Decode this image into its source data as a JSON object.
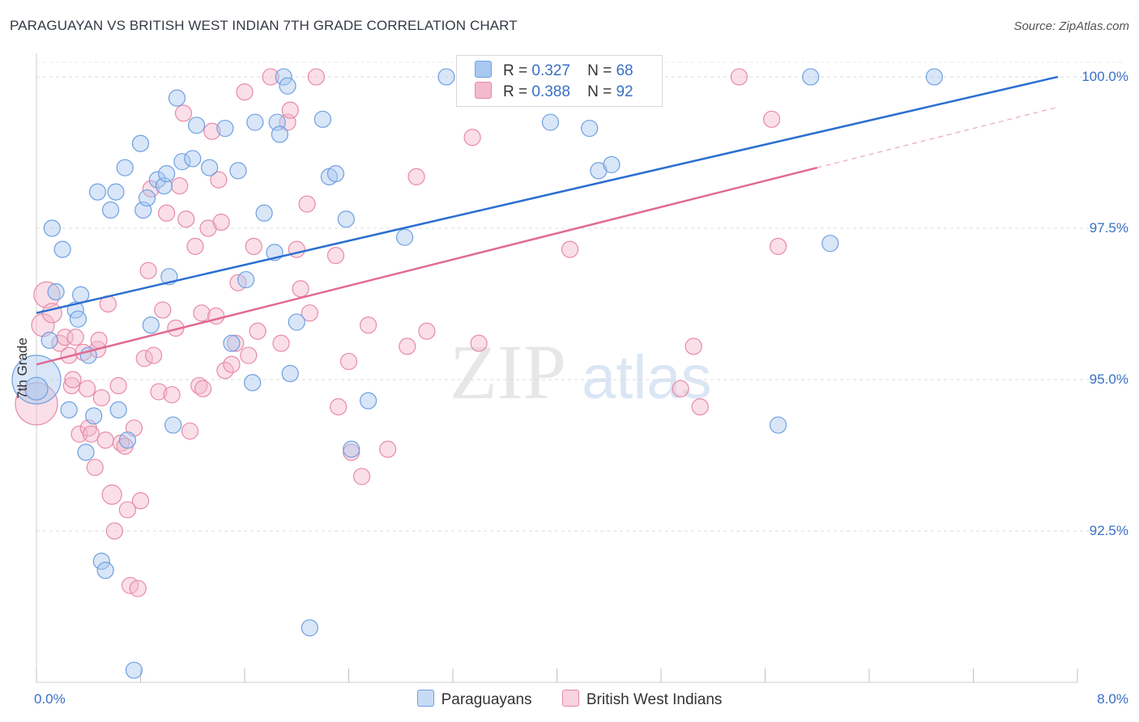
{
  "header": {
    "title": "PARAGUAYAN VS BRITISH WEST INDIAN 7TH GRADE CORRELATION CHART",
    "source": "Source: ZipAtlas.com"
  },
  "legend": {
    "row1": {
      "r_label": "R =",
      "r_value": "0.327",
      "n_label": "N =",
      "n_value": "68"
    },
    "row2": {
      "r_label": "R =",
      "r_value": "0.388",
      "n_label": "N =",
      "n_value": "92"
    }
  },
  "watermark": {
    "zip": "ZIP",
    "atlas": "atlas"
  },
  "colors": {
    "blue_fill": "#a9c8f0",
    "blue_stroke": "#6f9fe0",
    "blue_line": "#2b6fcf",
    "pink_fill": "#f4b9cc",
    "pink_stroke": "#e889a8",
    "pink_line": "#e06a94",
    "grid": "#dddddd",
    "tick_text": "#3a6fc4"
  },
  "chart_data": {
    "type": "scatter",
    "title": "PARAGUAYAN VS BRITISH WEST INDIAN 7TH GRADE CORRELATION CHART",
    "xlabel": "",
    "ylabel": "7th Grade",
    "xlim": [
      0,
      8
    ],
    "ylim": [
      90.0,
      100.2
    ],
    "x_tick_labels": [
      "0.0%",
      "8.0%"
    ],
    "y_ticks": [
      92.5,
      95.0,
      97.5,
      100.0
    ],
    "y_tick_labels": [
      "92.5%",
      "95.0%",
      "97.5%",
      "100.0%"
    ],
    "series": [
      {
        "name": "Paraguayans",
        "color": "blue",
        "r": 0.327,
        "n": 68,
        "trend": {
          "x": [
            0.0,
            7.85
          ],
          "y": [
            96.1,
            100.0
          ],
          "dash_after": null
        },
        "points": [
          [
            0.0,
            95.0,
            30
          ],
          [
            0.0,
            94.85,
            14
          ],
          [
            0.1,
            95.65,
            10
          ],
          [
            0.12,
            97.5,
            10
          ],
          [
            0.15,
            96.45,
            10
          ],
          [
            0.2,
            97.15,
            10
          ],
          [
            0.25,
            94.5,
            10
          ],
          [
            0.3,
            96.15,
            10
          ],
          [
            0.32,
            96.0,
            10
          ],
          [
            0.34,
            96.4,
            10
          ],
          [
            0.38,
            93.8,
            10
          ],
          [
            0.4,
            95.4,
            10
          ],
          [
            0.44,
            94.4,
            10
          ],
          [
            0.47,
            98.1,
            10
          ],
          [
            0.5,
            92.0,
            10
          ],
          [
            0.53,
            91.85,
            10
          ],
          [
            0.57,
            97.8,
            10
          ],
          [
            0.61,
            98.1,
            10
          ],
          [
            0.63,
            94.5,
            10
          ],
          [
            0.68,
            98.5,
            10
          ],
          [
            0.7,
            94.0,
            10
          ],
          [
            0.75,
            90.2,
            10
          ],
          [
            0.8,
            98.9,
            10
          ],
          [
            0.82,
            97.8,
            10
          ],
          [
            0.85,
            98.0,
            10
          ],
          [
            0.88,
            95.9,
            10
          ],
          [
            0.93,
            98.3,
            10
          ],
          [
            0.98,
            98.2,
            10
          ],
          [
            1.0,
            98.4,
            10
          ],
          [
            1.02,
            96.7,
            10
          ],
          [
            1.05,
            94.25,
            10
          ],
          [
            1.08,
            99.65,
            10
          ],
          [
            1.12,
            98.6,
            10
          ],
          [
            1.2,
            98.65,
            10
          ],
          [
            1.23,
            99.2,
            10
          ],
          [
            1.33,
            98.5,
            10
          ],
          [
            1.45,
            99.15,
            10
          ],
          [
            1.5,
            95.6,
            10
          ],
          [
            1.55,
            98.45,
            10
          ],
          [
            1.61,
            96.65,
            10
          ],
          [
            1.66,
            94.95,
            10
          ],
          [
            1.68,
            99.25,
            10
          ],
          [
            1.75,
            97.75,
            10
          ],
          [
            1.83,
            97.1,
            10
          ],
          [
            1.85,
            99.25,
            10
          ],
          [
            1.87,
            99.05,
            10
          ],
          [
            1.9,
            100.0,
            10
          ],
          [
            1.93,
            99.85,
            10
          ],
          [
            1.95,
            95.1,
            10
          ],
          [
            2.0,
            95.95,
            10
          ],
          [
            2.1,
            90.9,
            10
          ],
          [
            2.2,
            99.3,
            10
          ],
          [
            2.25,
            98.35,
            10
          ],
          [
            2.3,
            98.4,
            10
          ],
          [
            2.38,
            97.65,
            10
          ],
          [
            2.42,
            93.85,
            10
          ],
          [
            2.55,
            94.65,
            10
          ],
          [
            2.83,
            97.35,
            10
          ],
          [
            3.15,
            100.0,
            10
          ],
          [
            3.7,
            99.7,
            10
          ],
          [
            3.95,
            99.25,
            10
          ],
          [
            4.25,
            99.15,
            10
          ],
          [
            4.32,
            98.45,
            10
          ],
          [
            4.42,
            98.55,
            10
          ],
          [
            5.7,
            94.25,
            10
          ],
          [
            5.95,
            100.0,
            10
          ],
          [
            6.1,
            97.25,
            10
          ],
          [
            6.9,
            100.0,
            10
          ]
        ]
      },
      {
        "name": "British West Indians",
        "color": "pink",
        "r": 0.388,
        "n": 92,
        "trend": {
          "x": [
            0.0,
            6.0
          ],
          "y": [
            95.25,
            98.5
          ],
          "dash_to": [
            7.85,
            99.5
          ]
        },
        "points": [
          [
            0.0,
            94.6,
            26
          ],
          [
            0.05,
            95.9,
            14
          ],
          [
            0.08,
            96.4,
            16
          ],
          [
            0.12,
            96.1,
            12
          ],
          [
            0.18,
            95.6,
            10
          ],
          [
            0.22,
            95.7,
            10
          ],
          [
            0.25,
            95.4,
            10
          ],
          [
            0.27,
            94.9,
            10
          ],
          [
            0.28,
            95.0,
            10
          ],
          [
            0.3,
            95.7,
            10
          ],
          [
            0.33,
            94.1,
            10
          ],
          [
            0.36,
            95.45,
            10
          ],
          [
            0.39,
            94.85,
            10
          ],
          [
            0.4,
            94.2,
            10
          ],
          [
            0.42,
            94.1,
            10
          ],
          [
            0.45,
            93.55,
            10
          ],
          [
            0.47,
            95.5,
            10
          ],
          [
            0.48,
            95.65,
            10
          ],
          [
            0.5,
            94.7,
            10
          ],
          [
            0.53,
            94.0,
            10
          ],
          [
            0.55,
            96.25,
            10
          ],
          [
            0.58,
            93.1,
            12
          ],
          [
            0.6,
            92.5,
            10
          ],
          [
            0.63,
            94.9,
            10
          ],
          [
            0.65,
            93.95,
            10
          ],
          [
            0.68,
            93.9,
            10
          ],
          [
            0.7,
            92.85,
            10
          ],
          [
            0.72,
            91.6,
            10
          ],
          [
            0.75,
            94.2,
            10
          ],
          [
            0.78,
            91.55,
            10
          ],
          [
            0.8,
            93.0,
            10
          ],
          [
            0.83,
            95.35,
            10
          ],
          [
            0.86,
            96.8,
            10
          ],
          [
            0.88,
            98.15,
            10
          ],
          [
            0.9,
            95.4,
            10
          ],
          [
            0.94,
            94.8,
            10
          ],
          [
            0.97,
            96.15,
            10
          ],
          [
            1.0,
            97.75,
            10
          ],
          [
            1.04,
            94.75,
            10
          ],
          [
            1.07,
            95.85,
            10
          ],
          [
            1.1,
            98.2,
            10
          ],
          [
            1.13,
            99.4,
            10
          ],
          [
            1.15,
            97.65,
            10
          ],
          [
            1.18,
            94.15,
            10
          ],
          [
            1.22,
            97.2,
            10
          ],
          [
            1.25,
            94.9,
            10
          ],
          [
            1.27,
            96.1,
            10
          ],
          [
            1.28,
            94.85,
            10
          ],
          [
            1.32,
            97.5,
            10
          ],
          [
            1.35,
            99.1,
            10
          ],
          [
            1.38,
            96.05,
            10
          ],
          [
            1.4,
            98.3,
            10
          ],
          [
            1.42,
            97.6,
            10
          ],
          [
            1.45,
            95.15,
            10
          ],
          [
            1.5,
            95.25,
            10
          ],
          [
            1.53,
            95.6,
            10
          ],
          [
            1.55,
            96.6,
            10
          ],
          [
            1.6,
            99.75,
            10
          ],
          [
            1.63,
            95.4,
            10
          ],
          [
            1.67,
            97.2,
            10
          ],
          [
            1.7,
            95.8,
            10
          ],
          [
            1.8,
            100.0,
            10
          ],
          [
            1.88,
            95.6,
            10
          ],
          [
            1.93,
            99.25,
            10
          ],
          [
            1.95,
            99.45,
            10
          ],
          [
            2.0,
            97.15,
            10
          ],
          [
            2.03,
            96.5,
            10
          ],
          [
            2.08,
            97.9,
            10
          ],
          [
            2.1,
            96.1,
            10
          ],
          [
            2.15,
            100.0,
            10
          ],
          [
            2.3,
            97.05,
            10
          ],
          [
            2.32,
            94.55,
            10
          ],
          [
            2.4,
            95.3,
            10
          ],
          [
            2.42,
            93.8,
            10
          ],
          [
            2.5,
            93.4,
            10
          ],
          [
            2.55,
            95.9,
            10
          ],
          [
            2.7,
            93.85,
            10
          ],
          [
            2.85,
            95.55,
            10
          ],
          [
            2.92,
            98.35,
            10
          ],
          [
            3.0,
            95.8,
            10
          ],
          [
            3.35,
            99.0,
            10
          ],
          [
            3.4,
            95.6,
            10
          ],
          [
            4.1,
            97.15,
            10
          ],
          [
            4.15,
            100.0,
            10
          ],
          [
            4.95,
            94.85,
            10
          ],
          [
            5.05,
            95.55,
            10
          ],
          [
            5.1,
            94.55,
            10
          ],
          [
            5.4,
            100.0,
            10
          ],
          [
            5.65,
            99.3,
            10
          ],
          [
            5.7,
            97.2,
            10
          ]
        ]
      }
    ]
  },
  "bottom_legend": {
    "items": [
      {
        "label": "Paraguayans"
      },
      {
        "label": "British West Indians"
      }
    ]
  }
}
